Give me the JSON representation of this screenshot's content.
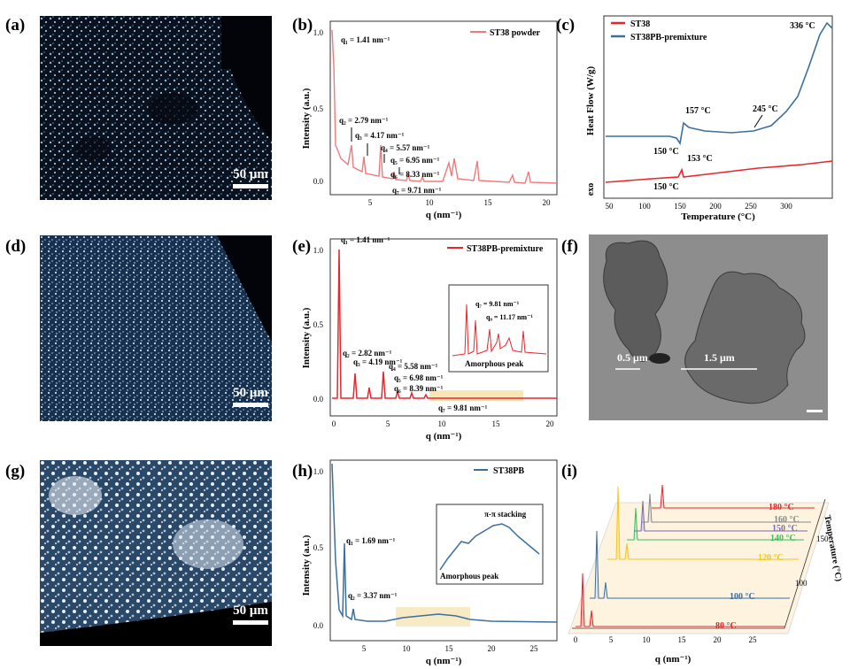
{
  "panels": {
    "a": {
      "letter": "(a)",
      "scale": "50 μm"
    },
    "b": {
      "letter": "(b)",
      "legend": "ST38 powder",
      "ylabel": "Intensity (a.u.)",
      "xlabel": "q (nm⁻¹)",
      "peaks": [
        "q₁ = 1.41 nm⁻¹",
        "q₂ = 2.79 nm⁻¹",
        "q₃ = 4.17 nm⁻¹",
        "q₄ = 5.57 nm⁻¹",
        "q₅ = 6.95 nm⁻¹",
        "q₆ = 8.33 nm⁻¹",
        "q₇ = 9.71 nm⁻¹"
      ],
      "xticks": [
        "5",
        "10",
        "15",
        "20"
      ],
      "yticks": [
        "0.0",
        "0.5",
        "1.0"
      ]
    },
    "c": {
      "letter": "(c)",
      "legend1": "ST38",
      "legend2": "ST38PB-premixture",
      "ylabel": "Heat Flow (W/g)",
      "xlabel": "Temperature (°C)",
      "exo": "exo",
      "ann": [
        "336 °C",
        "157 °C",
        "245 °C",
        "150 °C",
        "153 °C",
        "150 °C"
      ],
      "xticks": [
        "50",
        "100",
        "150",
        "200",
        "250",
        "300"
      ]
    },
    "d": {
      "letter": "(d)",
      "scale": "50 μm"
    },
    "e": {
      "letter": "(e)",
      "legend": "ST38PB-premixture",
      "ylabel": "Intensity (a.u.)",
      "xlabel": "q (nm⁻¹)",
      "peaks": [
        "q₁ = 1.41 nm⁻¹",
        "q₂ = 2.82 nm⁻¹",
        "q₃ = 4.19 nm⁻¹",
        "q₄ = 5.58 nm⁻¹",
        "q₅ = 6.98 nm⁻¹",
        "q₆ = 8.39 nm⁻¹",
        "q₇ = 9.81 nm⁻¹"
      ],
      "inset": [
        "q₇ = 9.81 nm⁻¹",
        "q₈ = 11.17 nm⁻¹",
        "Amorphous peak"
      ],
      "xticks": [
        "0",
        "5",
        "10",
        "15",
        "20"
      ],
      "yticks": [
        "0.0",
        "0.5",
        "1.0"
      ]
    },
    "f": {
      "letter": "(f)",
      "m1": "0.5 μm",
      "m2": "1.5 μm"
    },
    "g": {
      "letter": "(g)",
      "scale": "50 μm"
    },
    "h": {
      "letter": "(h)",
      "legend": "ST38PB",
      "ylabel": "Intensity (a.u.)",
      "xlabel": "q (nm⁻¹)",
      "peaks": [
        "q₁ = 1.69 nm⁻¹",
        "q₂ = 3.37 nm⁻¹"
      ],
      "inset": [
        "π-π stacking",
        "Amorphous peak"
      ],
      "xticks": [
        "5",
        "10",
        "15",
        "20",
        "25"
      ],
      "yticks": [
        "0.0",
        "0.5",
        "1.0"
      ]
    },
    "i": {
      "letter": "(i)",
      "xlabel": "q (nm⁻¹)",
      "zlabel": "Temperature (°C)",
      "temps": [
        "180 °C",
        "160 °C",
        "150 °C",
        "140 °C",
        "120 °C",
        "100 °C",
        "80 °C"
      ],
      "xticks": [
        "0",
        "5",
        "10",
        "15",
        "20",
        "25"
      ],
      "zticks": [
        "100",
        "150"
      ]
    }
  },
  "colors": {
    "red": "#e8262b",
    "pink": "#f07a7a",
    "blue": "#3b6f9e",
    "yellow": "#f5c518",
    "green": "#3cbf5a",
    "purple": "#7b68b5"
  }
}
